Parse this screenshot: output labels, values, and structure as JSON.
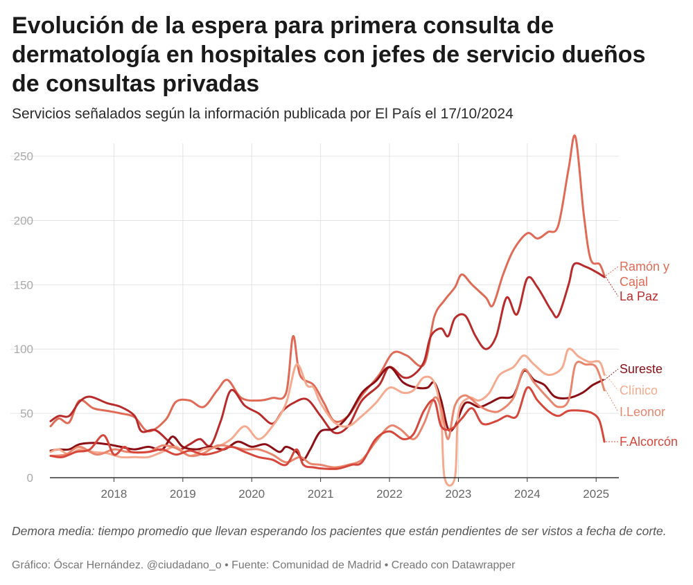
{
  "chart_data": {
    "type": "line",
    "title": "Evolución de la espera para primera consulta de dermatología en hospitales con jefes de servicio dueños de consultas privadas",
    "subtitle": "Servicios señalados según la información publicada por El País el 17/10/2024",
    "ylim": [
      0,
      260
    ],
    "xlim": [
      2017.07,
      2025.33
    ],
    "yticks": [
      0,
      50,
      100,
      150,
      200,
      250
    ],
    "xticks": [
      2018,
      2019,
      2020,
      2021,
      2022,
      2023,
      2024,
      2025
    ],
    "xtick_labels": [
      "2018",
      "2019",
      "2020",
      "2021",
      "2022",
      "2023",
      "2024",
      "2025"
    ],
    "series": [
      {
        "name": "Ramón y Cajal",
        "label_lines": [
          "Ramón y",
          "Cajal"
        ],
        "color": "#e06a55",
        "width": 3,
        "points": [
          [
            2017.08,
            40
          ],
          [
            2017.2,
            46
          ],
          [
            2017.35,
            43
          ],
          [
            2017.5,
            60
          ],
          [
            2017.7,
            54
          ],
          [
            2017.9,
            52
          ],
          [
            2018.1,
            50
          ],
          [
            2018.3,
            47
          ],
          [
            2018.5,
            36
          ],
          [
            2018.75,
            45
          ],
          [
            2018.9,
            59
          ],
          [
            2019.1,
            60
          ],
          [
            2019.3,
            55
          ],
          [
            2019.5,
            68
          ],
          [
            2019.65,
            76
          ],
          [
            2019.85,
            62
          ],
          [
            2020.1,
            60
          ],
          [
            2020.3,
            62
          ],
          [
            2020.5,
            66
          ],
          [
            2020.6,
            110
          ],
          [
            2020.7,
            80
          ],
          [
            2020.9,
            72
          ],
          [
            2021.05,
            58
          ],
          [
            2021.2,
            44
          ],
          [
            2021.4,
            48
          ],
          [
            2021.6,
            64
          ],
          [
            2021.85,
            80
          ],
          [
            2022.05,
            97
          ],
          [
            2022.25,
            95
          ],
          [
            2022.5,
            88
          ],
          [
            2022.65,
            125
          ],
          [
            2022.8,
            138
          ],
          [
            2022.95,
            148
          ],
          [
            2023.05,
            158
          ],
          [
            2023.2,
            150
          ],
          [
            2023.4,
            140
          ],
          [
            2023.5,
            134
          ],
          [
            2023.65,
            158
          ],
          [
            2023.8,
            177
          ],
          [
            2024.0,
            190
          ],
          [
            2024.15,
            186
          ],
          [
            2024.3,
            191
          ],
          [
            2024.45,
            196
          ],
          [
            2024.6,
            240
          ],
          [
            2024.7,
            265
          ],
          [
            2024.82,
            205
          ],
          [
            2024.92,
            170
          ],
          [
            2025.05,
            166
          ],
          [
            2025.12,
            157
          ]
        ]
      },
      {
        "name": "La Paz",
        "label_lines": [
          "La Paz"
        ],
        "color": "#b92b2b",
        "width": 3,
        "points": [
          [
            2017.08,
            44
          ],
          [
            2017.2,
            48
          ],
          [
            2017.35,
            48
          ],
          [
            2017.5,
            59
          ],
          [
            2017.65,
            63
          ],
          [
            2017.9,
            58
          ],
          [
            2018.1,
            55
          ],
          [
            2018.3,
            48
          ],
          [
            2018.4,
            36
          ],
          [
            2018.6,
            37
          ],
          [
            2018.8,
            28
          ],
          [
            2018.95,
            22
          ],
          [
            2019.1,
            26
          ],
          [
            2019.25,
            30
          ],
          [
            2019.4,
            25
          ],
          [
            2019.55,
            44
          ],
          [
            2019.7,
            68
          ],
          [
            2019.9,
            56
          ],
          [
            2020.1,
            50
          ],
          [
            2020.3,
            42
          ],
          [
            2020.45,
            52
          ],
          [
            2020.6,
            58
          ],
          [
            2020.8,
            61
          ],
          [
            2021.0,
            48
          ],
          [
            2021.2,
            35
          ],
          [
            2021.4,
            40
          ],
          [
            2021.6,
            60
          ],
          [
            2021.85,
            72
          ],
          [
            2022.0,
            86
          ],
          [
            2022.2,
            78
          ],
          [
            2022.35,
            80
          ],
          [
            2022.5,
            90
          ],
          [
            2022.6,
            110
          ],
          [
            2022.75,
            116
          ],
          [
            2022.85,
            110
          ],
          [
            2022.95,
            124
          ],
          [
            2023.1,
            126
          ],
          [
            2023.25,
            110
          ],
          [
            2023.4,
            100
          ],
          [
            2023.55,
            110
          ],
          [
            2023.7,
            140
          ],
          [
            2023.85,
            127
          ],
          [
            2024.0,
            155
          ],
          [
            2024.15,
            148
          ],
          [
            2024.35,
            130
          ],
          [
            2024.45,
            126
          ],
          [
            2024.6,
            150
          ],
          [
            2024.68,
            166
          ],
          [
            2024.85,
            164
          ],
          [
            2025.0,
            160
          ],
          [
            2025.12,
            156
          ]
        ]
      },
      {
        "name": "Sureste",
        "label_lines": [
          "Sureste"
        ],
        "color": "#8b0e14",
        "width": 3,
        "points": [
          [
            2017.08,
            21
          ],
          [
            2017.2,
            22
          ],
          [
            2017.35,
            22
          ],
          [
            2017.5,
            26
          ],
          [
            2017.7,
            27
          ],
          [
            2017.9,
            26
          ],
          [
            2018.1,
            24
          ],
          [
            2018.3,
            22
          ],
          [
            2018.5,
            24
          ],
          [
            2018.7,
            22
          ],
          [
            2018.85,
            32
          ],
          [
            2019.0,
            24
          ],
          [
            2019.2,
            22
          ],
          [
            2019.4,
            24
          ],
          [
            2019.6,
            22
          ],
          [
            2019.8,
            28
          ],
          [
            2020.0,
            24
          ],
          [
            2020.2,
            26
          ],
          [
            2020.4,
            20
          ],
          [
            2020.5,
            24
          ],
          [
            2020.65,
            20
          ],
          [
            2020.75,
            14
          ],
          [
            2020.85,
            22
          ],
          [
            2021.0,
            36
          ],
          [
            2021.2,
            38
          ],
          [
            2021.4,
            48
          ],
          [
            2021.6,
            66
          ],
          [
            2021.8,
            75
          ],
          [
            2022.0,
            86
          ],
          [
            2022.2,
            74
          ],
          [
            2022.4,
            70
          ],
          [
            2022.55,
            70
          ],
          [
            2022.65,
            74
          ],
          [
            2022.75,
            60
          ],
          [
            2022.85,
            38
          ],
          [
            2022.95,
            40
          ],
          [
            2023.1,
            58
          ],
          [
            2023.3,
            55
          ],
          [
            2023.45,
            58
          ],
          [
            2023.6,
            62
          ],
          [
            2023.8,
            64
          ],
          [
            2023.95,
            83
          ],
          [
            2024.1,
            76
          ],
          [
            2024.25,
            72
          ],
          [
            2024.4,
            63
          ],
          [
            2024.6,
            62
          ],
          [
            2024.8,
            66
          ],
          [
            2024.95,
            72
          ],
          [
            2025.1,
            76
          ]
        ]
      },
      {
        "name": "Clínico",
        "label_lines": [
          "Clínico"
        ],
        "color": "#f5a98e",
        "width": 3,
        "points": [
          [
            2017.08,
            20
          ],
          [
            2017.2,
            22
          ],
          [
            2017.35,
            18
          ],
          [
            2017.5,
            22
          ],
          [
            2017.7,
            20
          ],
          [
            2017.9,
            19
          ],
          [
            2018.1,
            16
          ],
          [
            2018.3,
            16
          ],
          [
            2018.5,
            16
          ],
          [
            2018.7,
            20
          ],
          [
            2018.9,
            24
          ],
          [
            2019.1,
            17
          ],
          [
            2019.3,
            22
          ],
          [
            2019.5,
            24
          ],
          [
            2019.7,
            30
          ],
          [
            2019.9,
            40
          ],
          [
            2020.1,
            30
          ],
          [
            2020.3,
            40
          ],
          [
            2020.5,
            58
          ],
          [
            2020.65,
            88
          ],
          [
            2020.8,
            72
          ],
          [
            2020.9,
            70
          ],
          [
            2021.0,
            58
          ],
          [
            2021.2,
            43
          ],
          [
            2021.4,
            40
          ],
          [
            2021.6,
            48
          ],
          [
            2021.8,
            58
          ],
          [
            2022.0,
            70
          ],
          [
            2022.2,
            66
          ],
          [
            2022.35,
            68
          ],
          [
            2022.5,
            78
          ],
          [
            2022.65,
            74
          ],
          [
            2022.75,
            48
          ],
          [
            2022.8,
            0
          ],
          [
            2022.95,
            0
          ],
          [
            2023.0,
            50
          ],
          [
            2023.15,
            62
          ],
          [
            2023.3,
            60
          ],
          [
            2023.45,
            66
          ],
          [
            2023.6,
            80
          ],
          [
            2023.8,
            86
          ],
          [
            2023.95,
            95
          ],
          [
            2024.1,
            88
          ],
          [
            2024.3,
            80
          ],
          [
            2024.5,
            85
          ],
          [
            2024.6,
            100
          ],
          [
            2024.75,
            94
          ],
          [
            2024.9,
            90
          ],
          [
            2025.05,
            90
          ],
          [
            2025.12,
            80
          ]
        ]
      },
      {
        "name": "I.Leonor",
        "label_lines": [
          "I.Leonor"
        ],
        "color": "#e8856c",
        "width": 3,
        "points": [
          [
            2017.08,
            17
          ],
          [
            2017.3,
            18
          ],
          [
            2017.5,
            24
          ],
          [
            2017.75,
            18
          ],
          [
            2018.0,
            22
          ],
          [
            2018.2,
            20
          ],
          [
            2018.5,
            20
          ],
          [
            2018.7,
            25
          ],
          [
            2018.9,
            23
          ],
          [
            2019.1,
            17
          ],
          [
            2019.3,
            19
          ],
          [
            2019.5,
            25
          ],
          [
            2019.7,
            24
          ],
          [
            2019.9,
            22
          ],
          [
            2020.1,
            22
          ],
          [
            2020.3,
            18
          ],
          [
            2020.5,
            12
          ],
          [
            2020.7,
            16
          ],
          [
            2020.85,
            11
          ],
          [
            2021.0,
            10
          ],
          [
            2021.2,
            8
          ],
          [
            2021.4,
            10
          ],
          [
            2021.6,
            14
          ],
          [
            2021.8,
            28
          ],
          [
            2022.0,
            40
          ],
          [
            2022.15,
            38
          ],
          [
            2022.35,
            30
          ],
          [
            2022.5,
            42
          ],
          [
            2022.65,
            62
          ],
          [
            2022.75,
            54
          ],
          [
            2022.85,
            30
          ],
          [
            2022.95,
            56
          ],
          [
            2023.1,
            64
          ],
          [
            2023.3,
            56
          ],
          [
            2023.45,
            52
          ],
          [
            2023.6,
            52
          ],
          [
            2023.8,
            62
          ],
          [
            2023.95,
            84
          ],
          [
            2024.1,
            74
          ],
          [
            2024.3,
            62
          ],
          [
            2024.45,
            55
          ],
          [
            2024.6,
            60
          ],
          [
            2024.7,
            88
          ],
          [
            2024.85,
            88
          ],
          [
            2025.0,
            86
          ],
          [
            2025.12,
            68
          ]
        ]
      },
      {
        "name": "F.Alcorcón",
        "label_lines": [
          "F.Alcorcón"
        ],
        "color": "#d6463a",
        "width": 3,
        "points": [
          [
            2017.08,
            17
          ],
          [
            2017.25,
            16
          ],
          [
            2017.45,
            20
          ],
          [
            2017.65,
            22
          ],
          [
            2017.85,
            33
          ],
          [
            2018.0,
            18
          ],
          [
            2018.15,
            24
          ],
          [
            2018.25,
            20
          ],
          [
            2018.5,
            20
          ],
          [
            2018.7,
            22
          ],
          [
            2018.9,
            18
          ],
          [
            2019.1,
            21
          ],
          [
            2019.3,
            18
          ],
          [
            2019.5,
            20
          ],
          [
            2019.7,
            24
          ],
          [
            2019.9,
            20
          ],
          [
            2020.1,
            16
          ],
          [
            2020.3,
            14
          ],
          [
            2020.5,
            10
          ],
          [
            2020.65,
            22
          ],
          [
            2020.75,
            10
          ],
          [
            2020.9,
            8
          ],
          [
            2021.05,
            7
          ],
          [
            2021.25,
            7
          ],
          [
            2021.45,
            10
          ],
          [
            2021.6,
            12
          ],
          [
            2021.8,
            30
          ],
          [
            2022.0,
            36
          ],
          [
            2022.2,
            30
          ],
          [
            2022.35,
            34
          ],
          [
            2022.5,
            52
          ],
          [
            2022.65,
            60
          ],
          [
            2022.75,
            40
          ],
          [
            2022.9,
            38
          ],
          [
            2023.05,
            46
          ],
          [
            2023.2,
            54
          ],
          [
            2023.35,
            42
          ],
          [
            2023.55,
            44
          ],
          [
            2023.7,
            48
          ],
          [
            2023.85,
            48
          ],
          [
            2024.0,
            70
          ],
          [
            2024.15,
            60
          ],
          [
            2024.3,
            52
          ],
          [
            2024.45,
            48
          ],
          [
            2024.6,
            52
          ],
          [
            2024.8,
            52
          ],
          [
            2024.95,
            50
          ],
          [
            2025.05,
            44
          ],
          [
            2025.12,
            28
          ]
        ]
      }
    ]
  },
  "note": "Demora media: tiempo promedio que llevan esperando los pacientes que están pendientes de ser vistos a fecha de corte.",
  "footer": "Gráfico: Óscar Hernández. @ciudadano_o • Fuente: Comunidad de Madrid • Creado con Datawrapper"
}
